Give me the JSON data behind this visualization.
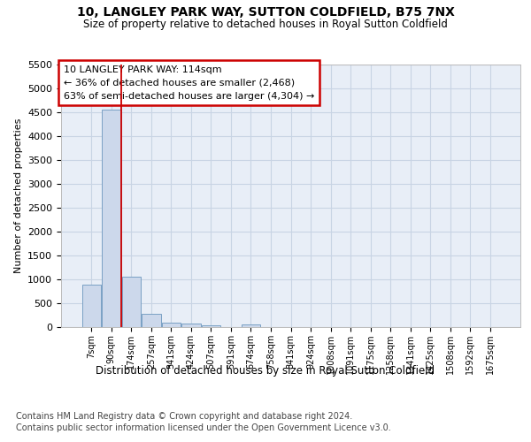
{
  "title1": "10, LANGLEY PARK WAY, SUTTON COLDFIELD, B75 7NX",
  "title2": "Size of property relative to detached houses in Royal Sutton Coldfield",
  "xlabel": "Distribution of detached houses by size in Royal Sutton Coldfield",
  "ylabel": "Number of detached properties",
  "footer1": "Contains HM Land Registry data © Crown copyright and database right 2024.",
  "footer2": "Contains public sector information licensed under the Open Government Licence v3.0.",
  "annotation_line1": "10 LANGLEY PARK WAY: 114sqm",
  "annotation_line2": "← 36% of detached houses are smaller (2,468)",
  "annotation_line3": "63% of semi-detached houses are larger (4,304) →",
  "bar_labels": [
    "7sqm",
    "90sqm",
    "174sqm",
    "257sqm",
    "341sqm",
    "424sqm",
    "507sqm",
    "591sqm",
    "674sqm",
    "758sqm",
    "841sqm",
    "924sqm",
    "1008sqm",
    "1091sqm",
    "1175sqm",
    "1258sqm",
    "1341sqm",
    "1425sqm",
    "1508sqm",
    "1592sqm",
    "1675sqm"
  ],
  "bar_values": [
    880,
    4550,
    1060,
    280,
    100,
    80,
    30,
    0,
    50,
    0,
    0,
    0,
    0,
    0,
    0,
    0,
    0,
    0,
    0,
    0,
    0
  ],
  "bar_color": "#ccd8eb",
  "bar_edgecolor": "#7aa0c4",
  "property_line_x": 1.5,
  "ylim_max": 5500,
  "yticks": [
    0,
    500,
    1000,
    1500,
    2000,
    2500,
    3000,
    3500,
    4000,
    4500,
    5000,
    5500
  ],
  "grid_color": "#c8d4e4",
  "background_color": "#e8eef7"
}
